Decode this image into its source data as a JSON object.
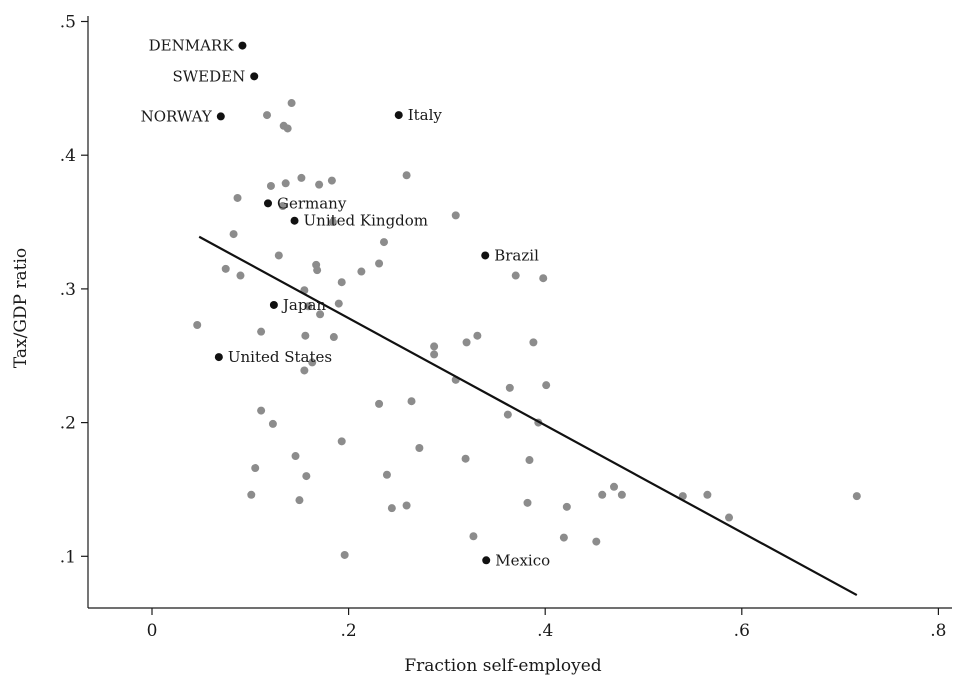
{
  "chart_data": {
    "type": "scatter",
    "title": "",
    "xlabel": "Fraction self-employed",
    "ylabel": "Tax/GDP ratio",
    "xlim": [
      -0.065,
      0.82
    ],
    "ylim": [
      0.065,
      0.51
    ],
    "xticks": [
      0,
      0.2,
      0.4,
      0.6,
      0.8
    ],
    "xtick_labels": [
      "0",
      ".2",
      ".4",
      ".6",
      ".8"
    ],
    "yticks": [
      0.1,
      0.2,
      0.3,
      0.4,
      0.5
    ],
    "ytick_labels": [
      ".1",
      ".2",
      ".3",
      ".4",
      ".5"
    ],
    "grid": false,
    "colors": {
      "unlabeled_points": "#8c8c8c",
      "labeled_points": "#111111",
      "fit_line": "#111111",
      "axes": "#1a1a1a"
    },
    "labeled_points": [
      {
        "label": "DENMARK",
        "x": 0.092,
        "y": 0.482,
        "label_side": "left"
      },
      {
        "label": "SWEDEN",
        "x": 0.104,
        "y": 0.459,
        "label_side": "left"
      },
      {
        "label": "NORWAY",
        "x": 0.07,
        "y": 0.429,
        "label_side": "left"
      },
      {
        "label": "Italy",
        "x": 0.251,
        "y": 0.43,
        "label_side": "right"
      },
      {
        "label": "Germany",
        "x": 0.118,
        "y": 0.364,
        "label_side": "right"
      },
      {
        "label": "United Kingdom",
        "x": 0.145,
        "y": 0.351,
        "label_side": "right"
      },
      {
        "label": "Brazil",
        "x": 0.339,
        "y": 0.325,
        "label_side": "right"
      },
      {
        "label": "Japan",
        "x": 0.124,
        "y": 0.288,
        "label_side": "right"
      },
      {
        "label": "United States",
        "x": 0.068,
        "y": 0.249,
        "label_side": "right"
      },
      {
        "label": "Mexico",
        "x": 0.34,
        "y": 0.097,
        "label_side": "right"
      }
    ],
    "other_points": [
      {
        "x": 0.046,
        "y": 0.273
      },
      {
        "x": 0.075,
        "y": 0.315
      },
      {
        "x": 0.083,
        "y": 0.341
      },
      {
        "x": 0.087,
        "y": 0.368
      },
      {
        "x": 0.09,
        "y": 0.31
      },
      {
        "x": 0.117,
        "y": 0.43
      },
      {
        "x": 0.121,
        "y": 0.377
      },
      {
        "x": 0.134,
        "y": 0.422
      },
      {
        "x": 0.138,
        "y": 0.42
      },
      {
        "x": 0.142,
        "y": 0.439
      },
      {
        "x": 0.136,
        "y": 0.379
      },
      {
        "x": 0.152,
        "y": 0.383
      },
      {
        "x": 0.129,
        "y": 0.325
      },
      {
        "x": 0.133,
        "y": 0.362
      },
      {
        "x": 0.17,
        "y": 0.378
      },
      {
        "x": 0.183,
        "y": 0.381
      },
      {
        "x": 0.184,
        "y": 0.35
      },
      {
        "x": 0.167,
        "y": 0.318
      },
      {
        "x": 0.168,
        "y": 0.314
      },
      {
        "x": 0.155,
        "y": 0.299
      },
      {
        "x": 0.159,
        "y": 0.287
      },
      {
        "x": 0.171,
        "y": 0.281
      },
      {
        "x": 0.156,
        "y": 0.265
      },
      {
        "x": 0.185,
        "y": 0.264
      },
      {
        "x": 0.19,
        "y": 0.289
      },
      {
        "x": 0.193,
        "y": 0.305
      },
      {
        "x": 0.231,
        "y": 0.319
      },
      {
        "x": 0.213,
        "y": 0.313
      },
      {
        "x": 0.236,
        "y": 0.335
      },
      {
        "x": 0.259,
        "y": 0.385
      },
      {
        "x": 0.309,
        "y": 0.355
      },
      {
        "x": 0.37,
        "y": 0.31
      },
      {
        "x": 0.398,
        "y": 0.308
      },
      {
        "x": 0.163,
        "y": 0.245
      },
      {
        "x": 0.155,
        "y": 0.239
      },
      {
        "x": 0.111,
        "y": 0.268
      },
      {
        "x": 0.287,
        "y": 0.257
      },
      {
        "x": 0.287,
        "y": 0.251
      },
      {
        "x": 0.32,
        "y": 0.26
      },
      {
        "x": 0.331,
        "y": 0.265
      },
      {
        "x": 0.388,
        "y": 0.26
      },
      {
        "x": 0.309,
        "y": 0.232
      },
      {
        "x": 0.364,
        "y": 0.226
      },
      {
        "x": 0.401,
        "y": 0.228
      },
      {
        "x": 0.111,
        "y": 0.209
      },
      {
        "x": 0.123,
        "y": 0.199
      },
      {
        "x": 0.231,
        "y": 0.214
      },
      {
        "x": 0.264,
        "y": 0.216
      },
      {
        "x": 0.362,
        "y": 0.206
      },
      {
        "x": 0.393,
        "y": 0.2
      },
      {
        "x": 0.193,
        "y": 0.186
      },
      {
        "x": 0.272,
        "y": 0.181
      },
      {
        "x": 0.146,
        "y": 0.175
      },
      {
        "x": 0.319,
        "y": 0.173
      },
      {
        "x": 0.384,
        "y": 0.172
      },
      {
        "x": 0.105,
        "y": 0.166
      },
      {
        "x": 0.157,
        "y": 0.16
      },
      {
        "x": 0.239,
        "y": 0.161
      },
      {
        "x": 0.101,
        "y": 0.146
      },
      {
        "x": 0.15,
        "y": 0.142
      },
      {
        "x": 0.244,
        "y": 0.136
      },
      {
        "x": 0.259,
        "y": 0.138
      },
      {
        "x": 0.382,
        "y": 0.14
      },
      {
        "x": 0.422,
        "y": 0.137
      },
      {
        "x": 0.458,
        "y": 0.146
      },
      {
        "x": 0.47,
        "y": 0.152
      },
      {
        "x": 0.478,
        "y": 0.146
      },
      {
        "x": 0.54,
        "y": 0.145
      },
      {
        "x": 0.565,
        "y": 0.146
      },
      {
        "x": 0.587,
        "y": 0.129
      },
      {
        "x": 0.717,
        "y": 0.145
      },
      {
        "x": 0.196,
        "y": 0.101
      },
      {
        "x": 0.327,
        "y": 0.115
      },
      {
        "x": 0.419,
        "y": 0.114
      },
      {
        "x": 0.452,
        "y": 0.111
      }
    ],
    "fit_line": {
      "x": [
        0.048,
        0.717
      ],
      "y": [
        0.339,
        0.071
      ]
    }
  }
}
